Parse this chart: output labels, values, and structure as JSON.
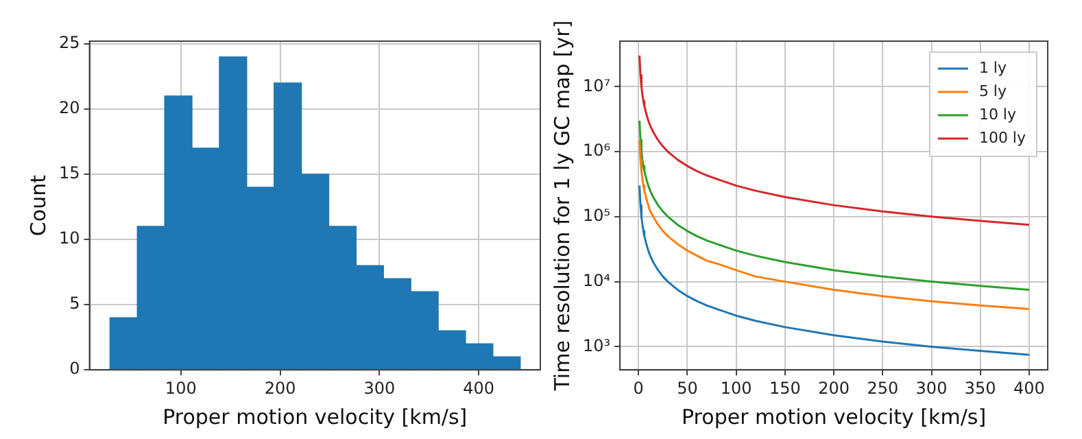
{
  "chart_data": [
    {
      "type": "histogram",
      "xlabel": "Proper motion velocity [km/s]",
      "ylabel": "Count",
      "bins": [
        28.6,
        56.1,
        83.7,
        111.2,
        138.8,
        166.3,
        193.9,
        221.4,
        249.0,
        276.5,
        304.1,
        331.6,
        359.2,
        386.7,
        414.3,
        441.8
      ],
      "values": [
        4,
        11,
        21,
        17,
        24,
        14,
        22,
        15,
        11,
        8,
        7,
        6,
        3,
        2,
        1
      ],
      "color": "#1f77b4",
      "xlim": [
        8,
        462
      ],
      "xticks": [
        100,
        200,
        300,
        400
      ],
      "ylim": [
        0,
        25.2
      ],
      "yticks": [
        0,
        5,
        10,
        15,
        20,
        25
      ],
      "grid": true
    },
    {
      "type": "line",
      "xlabel": "Proper motion velocity [km/s]",
      "ylabel": "Time resolution for 1 ly GC map [yr]",
      "log": "y",
      "grid": true,
      "legend": "top right",
      "x": [
        1,
        2,
        3,
        4,
        5,
        6,
        8,
        10,
        12,
        15,
        20,
        25,
        30,
        40,
        50,
        60,
        70,
        80,
        100,
        120,
        150,
        200,
        250,
        300,
        350,
        400
      ],
      "series": [
        {
          "name": "1 ly",
          "color": "#1f77b4",
          "values": [
            300000,
            150000,
            100000,
            75000,
            60000,
            50000,
            38000,
            30000,
            25000,
            20000,
            15000,
            12000,
            10000,
            7500,
            6000,
            5000,
            4300,
            3800,
            3000,
            2500,
            2000,
            1500,
            1200,
            1000,
            860,
            750
          ]
        },
        {
          "name": "5 ly",
          "color": "#ff7f0e",
          "values": [
            1500000,
            750000,
            500000,
            380000,
            300000,
            250000,
            190000,
            150000,
            120000,
            100000,
            75000,
            60000,
            50000,
            38000,
            30000,
            25000,
            21000,
            19000,
            15000,
            12000,
            10000,
            7500,
            6000,
            5000,
            4300,
            3800
          ]
        },
        {
          "name": "10 ly",
          "color": "#2ca02c",
          "values": [
            3000000,
            1500000,
            1000000,
            750000,
            600000,
            500000,
            380000,
            300000,
            250000,
            200000,
            150000,
            120000,
            100000,
            75000,
            60000,
            50000,
            43000,
            38000,
            30000,
            25000,
            20000,
            15000,
            12000,
            10000,
            8600,
            7500
          ]
        },
        {
          "name": "100 ly",
          "color": "#d62728",
          "values": [
            30000000,
            15000000,
            10000000,
            7500000,
            6000000,
            5000000,
            3800000,
            3000000,
            2500000,
            2000000,
            1500000,
            1200000,
            1000000,
            750000,
            600000,
            500000,
            430000,
            380000,
            300000,
            250000,
            200000,
            150000,
            120000,
            100000,
            86000,
            75000
          ]
        }
      ],
      "xlim": [
        -19,
        419
      ],
      "xticks": [
        0,
        50,
        100,
        150,
        200,
        250,
        300,
        350,
        400
      ],
      "ylim": [
        440,
        50000000
      ],
      "yticks": [
        {
          "value": 1000,
          "label": "10³"
        },
        {
          "value": 10000,
          "label": "10⁴"
        },
        {
          "value": 100000,
          "label": "10⁵"
        },
        {
          "value": 1000000,
          "label": "10⁶"
        },
        {
          "value": 10000000,
          "label": "10⁷"
        }
      ]
    }
  ]
}
